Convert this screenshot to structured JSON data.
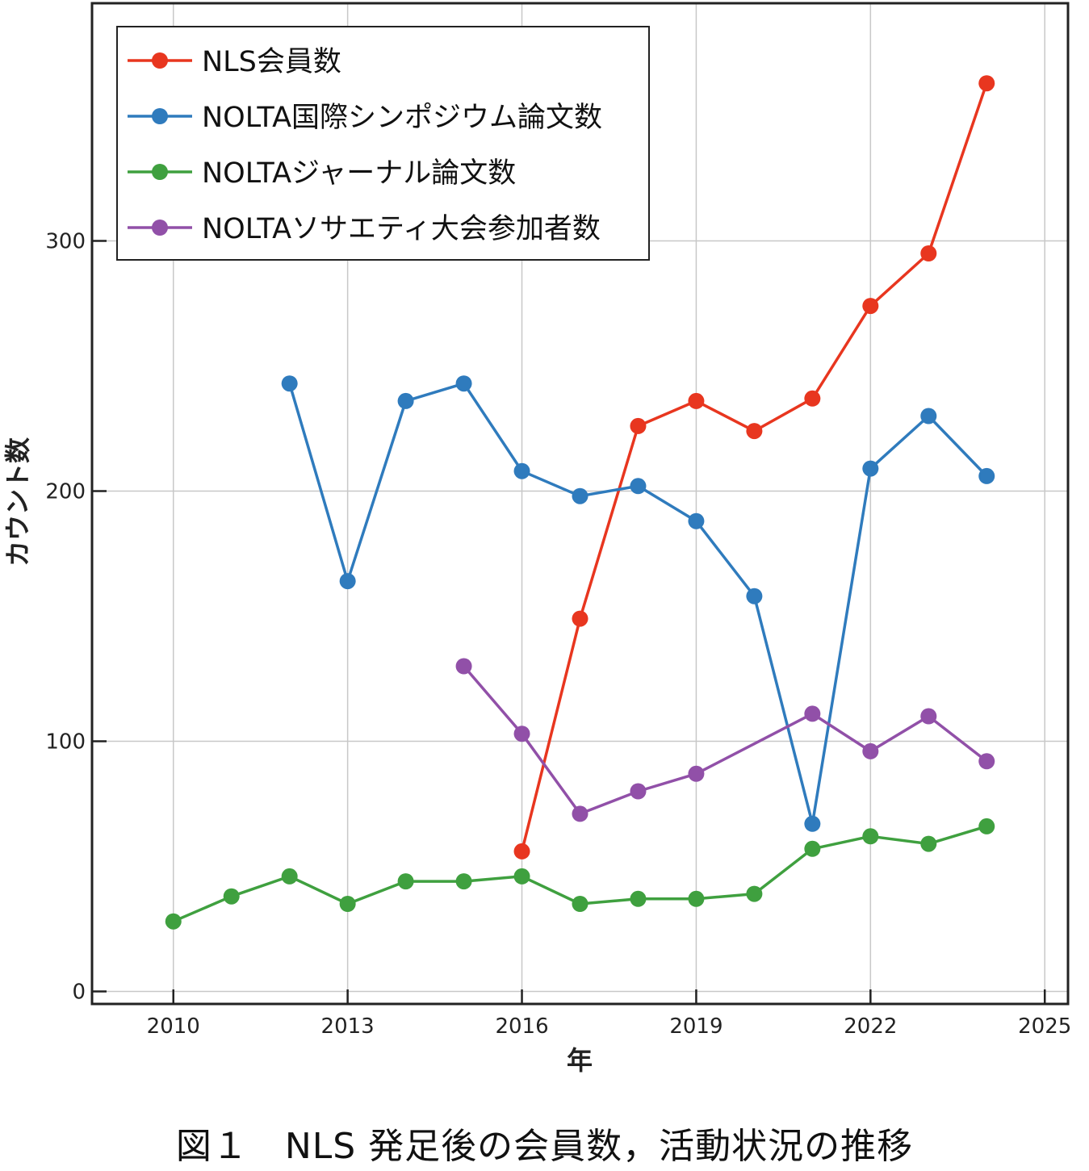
{
  "caption": "図１　NLS 発足後の会員数，活動状況の推移",
  "chart_data": {
    "type": "line",
    "title": "",
    "xlabel": "年",
    "ylabel": "カウント数",
    "xlim": [
      2008.6,
      2025.4
    ],
    "ylim": [
      -5,
      395
    ],
    "xticks": [
      2010,
      2013,
      2016,
      2019,
      2022,
      2025
    ],
    "yticks": [
      0,
      100,
      200,
      300
    ],
    "grid": true,
    "legend_position": "top-left",
    "series": [
      {
        "name": "NLS会員数",
        "color": "#e8361f",
        "x": [
          2016,
          2017,
          2018,
          2019,
          2020,
          2021,
          2022,
          2023,
          2024
        ],
        "values": [
          56,
          149,
          226,
          236,
          224,
          237,
          274,
          295,
          363
        ]
      },
      {
        "name": "NOLTA国際シンポジウム論文数",
        "color": "#2f7bbd",
        "x": [
          2012,
          2013,
          2014,
          2015,
          2016,
          2017,
          2018,
          2019,
          2020,
          2021,
          2022,
          2023,
          2024
        ],
        "values": [
          243,
          164,
          236,
          243,
          208,
          198,
          202,
          188,
          158,
          67,
          209,
          230,
          206
        ]
      },
      {
        "name": "NOLTAジャーナル論文数",
        "color": "#3fa03f",
        "x": [
          2010,
          2011,
          2012,
          2013,
          2014,
          2015,
          2016,
          2017,
          2018,
          2019,
          2020,
          2021,
          2022,
          2023,
          2024
        ],
        "values": [
          28,
          38,
          46,
          35,
          44,
          44,
          46,
          35,
          37,
          37,
          39,
          57,
          62,
          59,
          66
        ]
      },
      {
        "name": "NOLTAソサエティ大会参加者数",
        "color": "#9150a8",
        "x": [
          2015,
          2016,
          2017,
          2018,
          2019,
          2021,
          2022,
          2023,
          2024
        ],
        "values": [
          130,
          103,
          71,
          80,
          87,
          111,
          96,
          110,
          92
        ]
      }
    ]
  }
}
